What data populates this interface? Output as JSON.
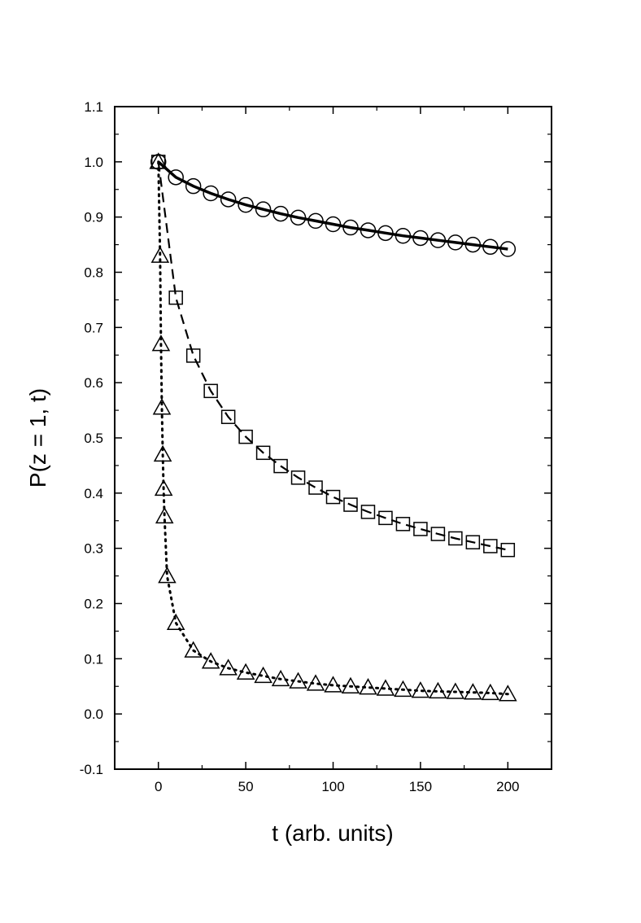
{
  "chart_data": {
    "type": "scatter",
    "title": "",
    "xlabel": "t (arb. units)",
    "ylabel": "P(z = 1, t)",
    "xlim": [
      -25,
      225
    ],
    "ylim": [
      -0.1,
      1.1
    ],
    "x_ticks": [
      0,
      50,
      100,
      150,
      200
    ],
    "x_tick_labels": [
      "0",
      "50",
      "100",
      "150",
      "200"
    ],
    "y_ticks": [
      -0.1,
      0.0,
      0.1,
      0.2,
      0.3,
      0.4,
      0.5,
      0.6,
      0.7,
      0.8,
      0.9,
      1.0,
      1.1
    ],
    "y_tick_labels": [
      "-0.1",
      "0.0",
      "0.1",
      "0.2",
      "0.3",
      "0.4",
      "0.5",
      "0.6",
      "0.7",
      "0.8",
      "0.9",
      "1.0",
      "1.1"
    ],
    "grid": false,
    "legend": "none",
    "series": [
      {
        "marker": "circle",
        "line_style": "solid",
        "color": "#000000",
        "x": [
          0,
          10,
          20,
          30,
          40,
          50,
          60,
          70,
          80,
          90,
          100,
          110,
          120,
          130,
          140,
          150,
          160,
          170,
          180,
          190,
          200
        ],
        "y": [
          1.0,
          0.972,
          0.956,
          0.943,
          0.932,
          0.922,
          0.914,
          0.906,
          0.899,
          0.893,
          0.887,
          0.881,
          0.876,
          0.871,
          0.866,
          0.862,
          0.858,
          0.854,
          0.85,
          0.846,
          0.842
        ]
      },
      {
        "marker": "square",
        "line_style": "dashed",
        "color": "#000000",
        "x": [
          0,
          10,
          20,
          30,
          40,
          50,
          60,
          70,
          80,
          90,
          100,
          110,
          120,
          130,
          140,
          150,
          160,
          170,
          180,
          190,
          200
        ],
        "y": [
          1.0,
          0.754,
          0.649,
          0.585,
          0.538,
          0.502,
          0.473,
          0.449,
          0.428,
          0.41,
          0.393,
          0.379,
          0.366,
          0.355,
          0.344,
          0.335,
          0.326,
          0.318,
          0.311,
          0.304,
          0.297
        ]
      },
      {
        "marker": "triangle",
        "line_style": "dotted",
        "color": "#000000",
        "x": [
          0,
          1,
          1.5,
          2,
          2.5,
          3,
          3.5,
          5,
          10,
          20,
          30,
          40,
          50,
          60,
          70,
          80,
          90,
          100,
          110,
          120,
          130,
          140,
          150,
          160,
          170,
          180,
          190,
          200
        ],
        "y": [
          1.0,
          0.83,
          0.67,
          0.555,
          0.47,
          0.408,
          0.358,
          0.25,
          0.165,
          0.115,
          0.095,
          0.083,
          0.075,
          0.069,
          0.063,
          0.059,
          0.055,
          0.052,
          0.05,
          0.048,
          0.046,
          0.044,
          0.042,
          0.041,
          0.04,
          0.039,
          0.038,
          0.036
        ]
      }
    ]
  }
}
